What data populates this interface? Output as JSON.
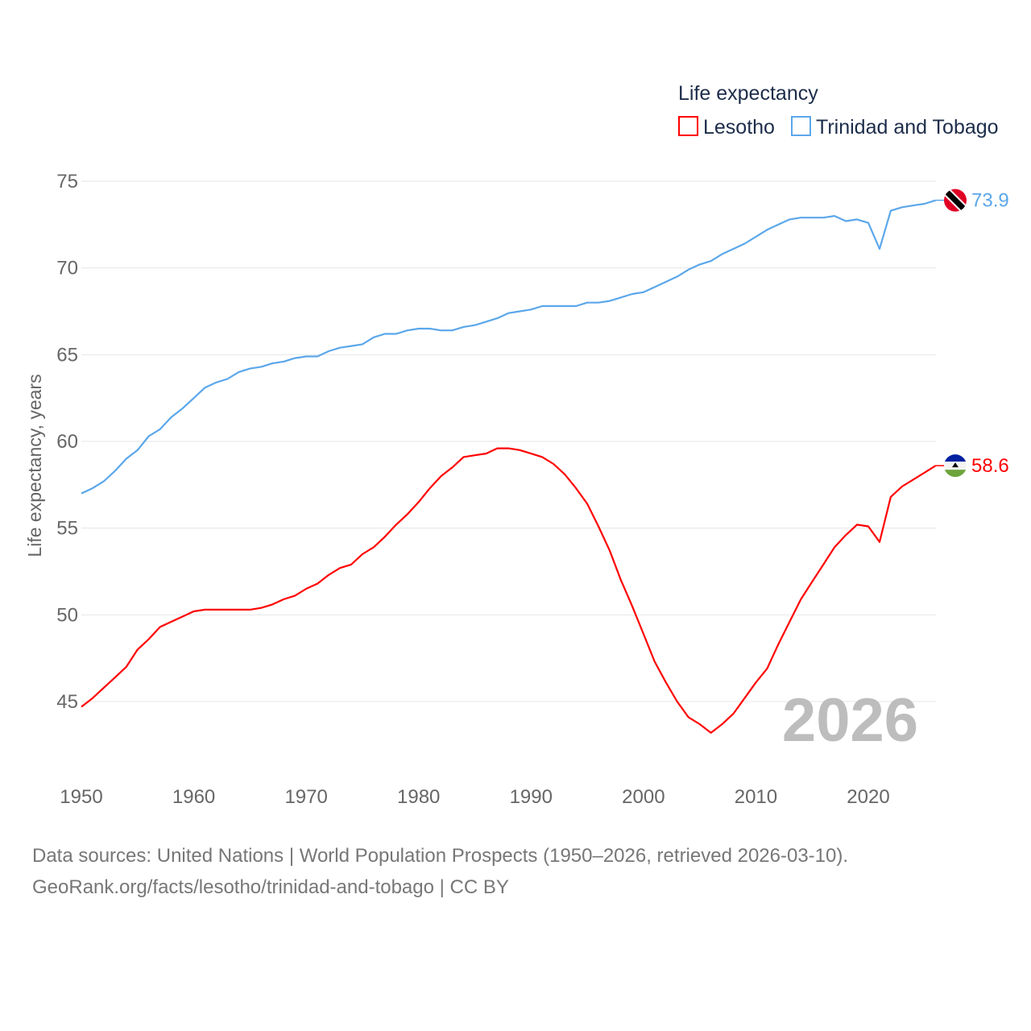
{
  "chart_data": {
    "type": "line",
    "legend_title": "Life expectancy",
    "ylabel": "Life expectancy, years",
    "xlabel": "",
    "current_year": "2026",
    "xlim": [
      1950,
      2026
    ],
    "ylim": [
      42,
      75
    ],
    "x_ticks": [
      1950,
      1960,
      1970,
      1980,
      1990,
      2000,
      2010,
      2020
    ],
    "y_ticks": [
      45,
      50,
      55,
      60,
      65,
      70,
      75
    ],
    "grid": true,
    "legend_position": "top-right",
    "x": [
      1950,
      1951,
      1952,
      1953,
      1954,
      1955,
      1956,
      1957,
      1958,
      1959,
      1960,
      1961,
      1962,
      1963,
      1964,
      1965,
      1966,
      1967,
      1968,
      1969,
      1970,
      1971,
      1972,
      1973,
      1974,
      1975,
      1976,
      1977,
      1978,
      1979,
      1980,
      1981,
      1982,
      1983,
      1984,
      1985,
      1986,
      1987,
      1988,
      1989,
      1990,
      1991,
      1992,
      1993,
      1994,
      1995,
      1996,
      1997,
      1998,
      1999,
      2000,
      2001,
      2002,
      2003,
      2004,
      2005,
      2006,
      2007,
      2008,
      2009,
      2010,
      2011,
      2012,
      2013,
      2014,
      2015,
      2016,
      2017,
      2018,
      2019,
      2020,
      2021,
      2022,
      2023,
      2024,
      2025,
      2026
    ],
    "series": [
      {
        "name": "Lesotho",
        "color": "#ff0000",
        "end_label": "58.6",
        "flag": "lesotho-flag",
        "values": [
          44.7,
          45.2,
          45.8,
          46.4,
          47.0,
          48.0,
          48.6,
          49.3,
          49.6,
          49.9,
          50.2,
          50.3,
          50.3,
          50.3,
          50.3,
          50.3,
          50.4,
          50.6,
          50.9,
          51.1,
          51.5,
          51.8,
          52.3,
          52.7,
          52.9,
          53.5,
          53.9,
          54.5,
          55.2,
          55.8,
          56.5,
          57.3,
          58.0,
          58.5,
          59.1,
          59.2,
          59.3,
          59.6,
          59.6,
          59.5,
          59.3,
          59.1,
          58.7,
          58.1,
          57.3,
          56.4,
          55.1,
          53.7,
          52.0,
          50.5,
          48.9,
          47.3,
          46.1,
          45.0,
          44.1,
          43.7,
          43.2,
          43.7,
          44.3,
          45.2,
          46.1,
          46.9,
          48.3,
          49.6,
          50.9,
          51.9,
          52.9,
          53.9,
          54.6,
          55.2,
          55.1,
          54.2,
          56.8,
          57.4,
          57.8,
          58.2,
          58.6
        ]
      },
      {
        "name": "Trinidad and Tobago",
        "color": "#5ba7ea",
        "end_label": "73.9",
        "flag": "trinidad-flag",
        "values": [
          57.0,
          57.3,
          57.7,
          58.3,
          59.0,
          59.5,
          60.3,
          60.7,
          61.4,
          61.9,
          62.5,
          63.1,
          63.4,
          63.6,
          64.0,
          64.2,
          64.3,
          64.5,
          64.6,
          64.8,
          64.9,
          64.9,
          65.2,
          65.4,
          65.5,
          65.6,
          66.0,
          66.2,
          66.2,
          66.4,
          66.5,
          66.5,
          66.4,
          66.4,
          66.6,
          66.7,
          66.9,
          67.1,
          67.4,
          67.5,
          67.6,
          67.8,
          67.8,
          67.8,
          67.8,
          68.0,
          68.0,
          68.1,
          68.3,
          68.5,
          68.6,
          68.9,
          69.2,
          69.5,
          69.9,
          70.2,
          70.4,
          70.8,
          71.1,
          71.4,
          71.8,
          72.2,
          72.5,
          72.8,
          72.9,
          72.9,
          72.9,
          73.0,
          72.7,
          72.8,
          72.6,
          71.1,
          73.3,
          73.5,
          73.6,
          73.7,
          73.9
        ]
      }
    ]
  },
  "footer": {
    "line1": "Data sources: United Nations | World Population Prospects (1950–2026, retrieved 2026-03-10).",
    "line2": "GeoRank.org/facts/lesotho/trinidad-and-tobago | CC BY"
  }
}
